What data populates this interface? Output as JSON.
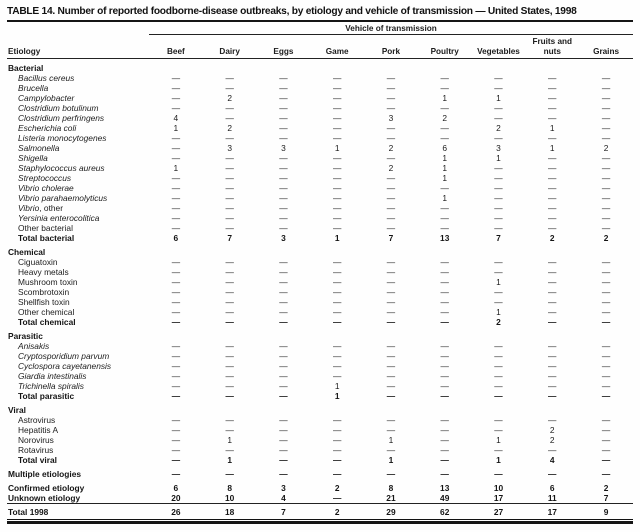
{
  "colors": {
    "ink": "#1c1c1c",
    "paper": "#fefefe"
  },
  "page": {
    "title": "TABLE 14. Number of reported foodborne-disease outbreaks, by etiology and vehicle of transmission — United States, 1998"
  },
  "table": {
    "spanner_header": "Vehicle of transmission",
    "etiology_header": "Etiology",
    "columns": [
      "Beef",
      "Dairy",
      "Eggs",
      "Game",
      "Pork",
      "Poultry",
      "Vegetables",
      "Fruits and nuts",
      "Grains"
    ],
    "sections": [
      {
        "name": "Bacterial",
        "rows": [
          {
            "label": "Bacillus cereus",
            "italic": true,
            "values": [
              "—",
              "—",
              "—",
              "—",
              "—",
              "—",
              "—",
              "—",
              "—"
            ]
          },
          {
            "label": "Brucella",
            "italic": true,
            "values": [
              "—",
              "—",
              "—",
              "—",
              "—",
              "—",
              "—",
              "—",
              "—"
            ]
          },
          {
            "label": "Campylobacter",
            "italic": true,
            "values": [
              "—",
              2,
              "—",
              "—",
              "—",
              1,
              1,
              "—",
              "—"
            ]
          },
          {
            "label": "Clostridium botulinum",
            "italic": true,
            "values": [
              "—",
              "—",
              "—",
              "—",
              "—",
              "—",
              "—",
              "—",
              "—"
            ]
          },
          {
            "label": "Clostridium perfringens",
            "italic": true,
            "values": [
              4,
              "—",
              "—",
              "—",
              3,
              2,
              "—",
              "—",
              "—"
            ]
          },
          {
            "label": "Escherichia coli",
            "italic": true,
            "values": [
              1,
              2,
              "—",
              "—",
              "—",
              "—",
              2,
              1,
              "—"
            ]
          },
          {
            "label": "Listeria monocytogenes",
            "italic": true,
            "values": [
              "—",
              "—",
              "—",
              "—",
              "—",
              "—",
              "—",
              "—",
              "—"
            ]
          },
          {
            "label": "Salmonella",
            "italic": true,
            "values": [
              "—",
              3,
              3,
              1,
              2,
              6,
              3,
              1,
              2
            ]
          },
          {
            "label": "Shigella",
            "italic": true,
            "values": [
              "—",
              "—",
              "—",
              "—",
              "—",
              1,
              1,
              "—",
              "—"
            ]
          },
          {
            "label": "Staphylococcus aureus",
            "italic": true,
            "values": [
              1,
              "—",
              "—",
              "—",
              2,
              1,
              "—",
              "—",
              "—"
            ]
          },
          {
            "label": "Streptococcus",
            "italic": true,
            "values": [
              "—",
              "—",
              "—",
              "—",
              "—",
              1,
              "—",
              "—",
              "—"
            ]
          },
          {
            "label": "Vibrio cholerae",
            "italic": true,
            "values": [
              "—",
              "—",
              "—",
              "—",
              "—",
              "—",
              "—",
              "—",
              "—"
            ]
          },
          {
            "label": "Vibrio parahaemolyticus",
            "italic": true,
            "values": [
              "—",
              "—",
              "—",
              "—",
              "—",
              1,
              "—",
              "—",
              "—"
            ]
          },
          {
            "label": "Vibrio",
            "suffix": ", other",
            "italic": true,
            "values": [
              "—",
              "—",
              "—",
              "—",
              "—",
              "—",
              "—",
              "—",
              "—"
            ]
          },
          {
            "label": "Yersinia enterocolitica",
            "italic": true,
            "values": [
              "—",
              "—",
              "—",
              "—",
              "—",
              "—",
              "—",
              "—",
              "—"
            ]
          },
          {
            "label": "Other bacterial",
            "values": [
              "—",
              "—",
              "—",
              "—",
              "—",
              "—",
              "—",
              "—",
              "—"
            ]
          },
          {
            "label": "Total bacterial",
            "bold": true,
            "values": [
              6,
              7,
              3,
              1,
              7,
              13,
              7,
              2,
              2
            ]
          }
        ]
      },
      {
        "name": "Chemical",
        "rows": [
          {
            "label": "Ciguatoxin",
            "values": [
              "—",
              "—",
              "—",
              "—",
              "—",
              "—",
              "—",
              "—",
              "—"
            ]
          },
          {
            "label": "Heavy metals",
            "values": [
              "—",
              "—",
              "—",
              "—",
              "—",
              "—",
              "—",
              "—",
              "—"
            ]
          },
          {
            "label": "Mushroom toxin",
            "values": [
              "—",
              "—",
              "—",
              "—",
              "—",
              "—",
              1,
              "—",
              "—"
            ]
          },
          {
            "label": "Scombrotoxin",
            "values": [
              "—",
              "—",
              "—",
              "—",
              "—",
              "—",
              "—",
              "—",
              "—"
            ]
          },
          {
            "label": "Shellfish toxin",
            "values": [
              "—",
              "—",
              "—",
              "—",
              "—",
              "—",
              "—",
              "—",
              "—"
            ]
          },
          {
            "label": "Other chemical",
            "values": [
              "—",
              "—",
              "—",
              "—",
              "—",
              "—",
              1,
              "—",
              "—"
            ]
          },
          {
            "label": "Total chemical",
            "bold": true,
            "values": [
              "—",
              "—",
              "—",
              "—",
              "—",
              "—",
              2,
              "—",
              "—"
            ]
          }
        ]
      },
      {
        "name": "Parasitic",
        "rows": [
          {
            "label": "Anisakis",
            "italic": true,
            "values": [
              "—",
              "—",
              "—",
              "—",
              "—",
              "—",
              "—",
              "—",
              "—"
            ]
          },
          {
            "label": "Cryptosporidium parvum",
            "italic": true,
            "values": [
              "—",
              "—",
              "—",
              "—",
              "—",
              "—",
              "—",
              "—",
              "—"
            ]
          },
          {
            "label": "Cyclospora cayetanensis",
            "italic": true,
            "values": [
              "—",
              "—",
              "—",
              "—",
              "—",
              "—",
              "—",
              "—",
              "—"
            ]
          },
          {
            "label": "Giardia intestinalis",
            "italic": true,
            "values": [
              "—",
              "—",
              "—",
              "—",
              "—",
              "—",
              "—",
              "—",
              "—"
            ]
          },
          {
            "label": "Trichinella spiralis",
            "italic": true,
            "values": [
              "—",
              "—",
              "—",
              1,
              "—",
              "—",
              "—",
              "—",
              "—"
            ]
          },
          {
            "label": "Total parasitic",
            "bold": true,
            "values": [
              "—",
              "—",
              "—",
              1,
              "—",
              "—",
              "—",
              "—",
              "—"
            ]
          }
        ]
      },
      {
        "name": "Viral",
        "rows": [
          {
            "label": "Astrovirus",
            "values": [
              "—",
              "—",
              "—",
              "—",
              "—",
              "—",
              "—",
              "—",
              "—"
            ]
          },
          {
            "label": "Hepatitis A",
            "values": [
              "—",
              "—",
              "—",
              "—",
              "—",
              "—",
              "—",
              2,
              "—"
            ]
          },
          {
            "label": "Norovirus",
            "values": [
              "—",
              1,
              "—",
              "—",
              1,
              "—",
              1,
              2,
              "—"
            ]
          },
          {
            "label": "Rotavirus",
            "values": [
              "—",
              "—",
              "—",
              "—",
              "—",
              "—",
              "—",
              "—",
              "—"
            ]
          },
          {
            "label": "Total viral",
            "bold": true,
            "values": [
              "—",
              1,
              "—",
              "—",
              1,
              "—",
              1,
              4,
              "—"
            ]
          }
        ]
      }
    ],
    "footer_rows": [
      {
        "label": "Multiple etiologies",
        "bold": true,
        "flush": true,
        "gap": true,
        "values": [
          "—",
          "—",
          "—",
          "—",
          "—",
          "—",
          "—",
          "—",
          "—"
        ]
      },
      {
        "label": "Confirmed etiology",
        "bold": true,
        "flush": true,
        "gap": true,
        "values": [
          6,
          8,
          3,
          2,
          8,
          13,
          10,
          6,
          2
        ]
      },
      {
        "label": "Unknown etiology",
        "bold": true,
        "flush": true,
        "values": [
          20,
          10,
          4,
          "—",
          21,
          49,
          17,
          11,
          7
        ]
      }
    ],
    "total_row": {
      "label": "Total 1998",
      "bold": true,
      "flush": true,
      "values": [
        26,
        18,
        7,
        2,
        29,
        62,
        27,
        17,
        9
      ]
    }
  }
}
